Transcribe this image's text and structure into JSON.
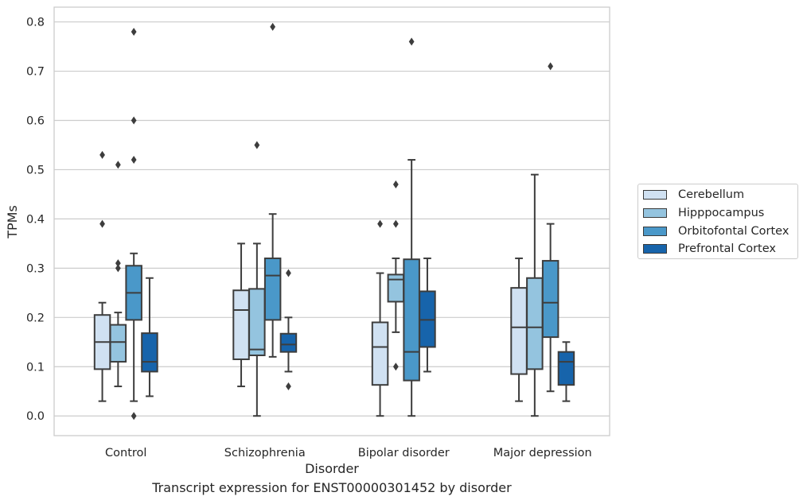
{
  "chart_data": {
    "type": "box",
    "xlabel": "Disorder",
    "ylabel": "TPMs",
    "caption": "Transcript expression for ENST00000301452 by disorder",
    "categories": [
      "Control",
      "Schizophrenia",
      "Bipolar disorder",
      "Major depression"
    ],
    "ylim": [
      -0.04,
      0.83
    ],
    "yticks": [
      "0.0",
      "0.1",
      "0.2",
      "0.3",
      "0.4",
      "0.5",
      "0.6",
      "0.7",
      "0.8"
    ],
    "grid": "horizontal",
    "legend_position": "right",
    "series": [
      {
        "name": "Cerebellum",
        "color": "#d0e1f2",
        "boxes": [
          {
            "whislo": 0.03,
            "q1": 0.095,
            "med": 0.15,
            "q3": 0.205,
            "whishi": 0.23,
            "fliers": [
              0.39,
              0.53
            ]
          },
          {
            "whislo": 0.06,
            "q1": 0.115,
            "med": 0.215,
            "q3": 0.255,
            "whishi": 0.35,
            "fliers": []
          },
          {
            "whislo": 0.0,
            "q1": 0.063,
            "med": 0.14,
            "q3": 0.19,
            "whishi": 0.29,
            "fliers": [
              0.39
            ]
          },
          {
            "whislo": 0.03,
            "q1": 0.085,
            "med": 0.18,
            "q3": 0.26,
            "whishi": 0.32,
            "fliers": []
          }
        ]
      },
      {
        "name": "Hipppocampus",
        "color": "#94c4df",
        "boxes": [
          {
            "whislo": 0.06,
            "q1": 0.11,
            "med": 0.15,
            "q3": 0.185,
            "whishi": 0.21,
            "fliers": [
              0.3,
              0.31,
              0.51
            ]
          },
          {
            "whislo": 0.0,
            "q1": 0.123,
            "med": 0.135,
            "q3": 0.258,
            "whishi": 0.35,
            "fliers": [
              0.55
            ]
          },
          {
            "whislo": 0.17,
            "q1": 0.232,
            "med": 0.277,
            "q3": 0.287,
            "whishi": 0.32,
            "fliers": [
              0.1,
              0.39,
              0.47
            ]
          },
          {
            "whislo": 0.0,
            "q1": 0.095,
            "med": 0.18,
            "q3": 0.28,
            "whishi": 0.49,
            "fliers": []
          }
        ]
      },
      {
        "name": "Orbitofontal Cortex",
        "color": "#4a98c9",
        "boxes": [
          {
            "whislo": 0.03,
            "q1": 0.195,
            "med": 0.25,
            "q3": 0.305,
            "whishi": 0.33,
            "fliers": [
              0.0,
              0.52,
              0.6,
              0.78
            ]
          },
          {
            "whislo": 0.12,
            "q1": 0.195,
            "med": 0.285,
            "q3": 0.32,
            "whishi": 0.41,
            "fliers": [
              0.79
            ]
          },
          {
            "whislo": 0.0,
            "q1": 0.072,
            "med": 0.13,
            "q3": 0.318,
            "whishi": 0.52,
            "fliers": [
              0.76
            ]
          },
          {
            "whislo": 0.05,
            "q1": 0.16,
            "med": 0.23,
            "q3": 0.315,
            "whishi": 0.39,
            "fliers": [
              0.71
            ]
          }
        ]
      },
      {
        "name": "Prefrontal Cortex",
        "color": "#1764ab",
        "boxes": [
          {
            "whislo": 0.04,
            "q1": 0.09,
            "med": 0.11,
            "q3": 0.168,
            "whishi": 0.28,
            "fliers": []
          },
          {
            "whislo": 0.09,
            "q1": 0.13,
            "med": 0.145,
            "q3": 0.167,
            "whishi": 0.2,
            "fliers": [
              0.06,
              0.29
            ]
          },
          {
            "whislo": 0.09,
            "q1": 0.14,
            "med": 0.195,
            "q3": 0.253,
            "whishi": 0.32,
            "fliers": []
          },
          {
            "whislo": 0.03,
            "q1": 0.063,
            "med": 0.11,
            "q3": 0.13,
            "whishi": 0.15,
            "fliers": []
          }
        ]
      }
    ]
  }
}
